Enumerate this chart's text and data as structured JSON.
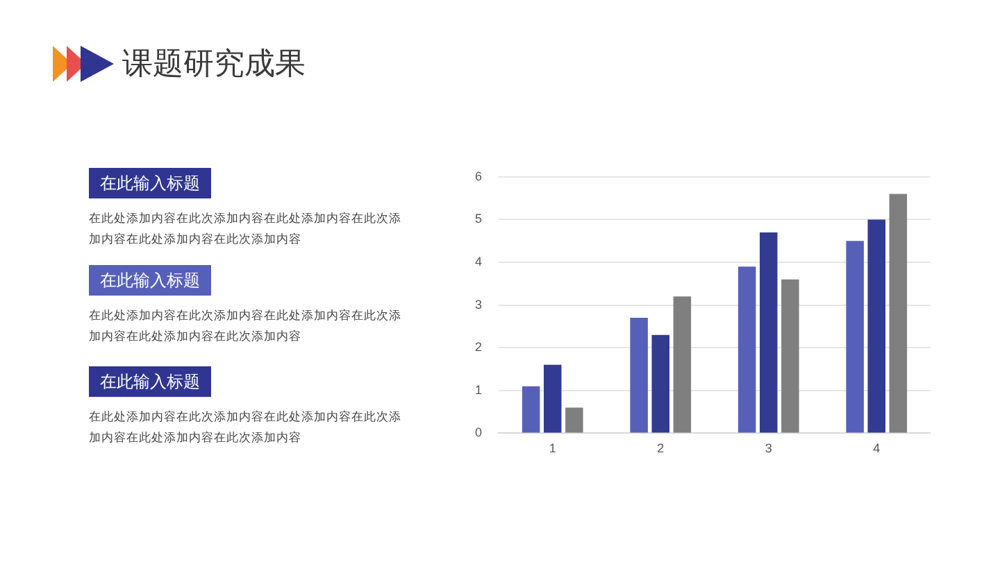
{
  "chart_data": {
    "type": "bar",
    "title": "课题研究成果",
    "categories": [
      "1",
      "2",
      "3",
      "4"
    ],
    "series": [
      {
        "color": "#5760b8",
        "values": [
          1.1,
          2.7,
          3.9,
          4.5
        ]
      },
      {
        "color": "#333a91",
        "values": [
          1.6,
          2.3,
          4.7,
          5.0
        ]
      },
      {
        "color": "#7f7f7f",
        "values": [
          0.6,
          3.2,
          3.6,
          5.6
        ]
      }
    ],
    "ylim": [
      0,
      6
    ],
    "yticks": [
      0,
      1,
      2,
      3,
      4,
      5,
      6
    ],
    "grid": "y",
    "legend": false,
    "annotations": [
      "在此输入标题",
      "在此处添加内容在此次添加内容在此处添加内容在此次添加内容在此处添加内容在此次添加内容",
      "在此输入标题",
      "在此处添加内容在此次添加内容在此处添加内容在此次添加内容在此处添加内容在此次添加内容",
      "在此输入标题",
      "在此处添加内容在此次添加内容在此处添加内容在此次添加内容在此处添加内容在此次添加内容"
    ]
  }
}
